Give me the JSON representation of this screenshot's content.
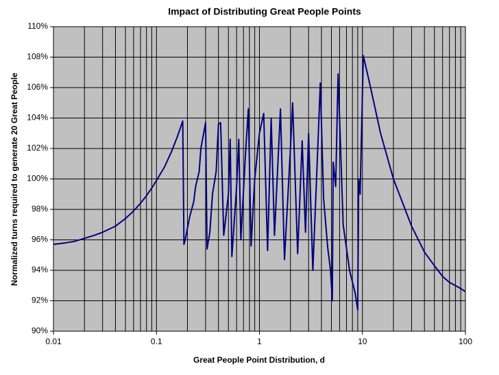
{
  "chart_data": {
    "type": "line",
    "title": "Impact of Distributing Great People Points",
    "xlabel": "Great People Point Distribution, d",
    "ylabel": "Normalized turns required to generate 20 Great People",
    "xscale": "log",
    "grid": true,
    "background": "#c0c0c0",
    "xlim": [
      0.01,
      100
    ],
    "xticks": [
      0.01,
      0.1,
      1,
      10,
      100
    ],
    "xminorticks": [
      0.02,
      0.03,
      0.04,
      0.05,
      0.06,
      0.07,
      0.08,
      0.09,
      0.2,
      0.3,
      0.4,
      0.5,
      0.6,
      0.7,
      0.8,
      0.9,
      2,
      3,
      4,
      5,
      6,
      7,
      8,
      9,
      20,
      30,
      40,
      50,
      60,
      70,
      80,
      90
    ],
    "ylim": [
      90,
      110
    ],
    "yticks": [
      {
        "value": 90,
        "label": "90%"
      },
      {
        "value": 92,
        "label": "92%"
      },
      {
        "value": 94,
        "label": "94%"
      },
      {
        "value": 96,
        "label": "96%"
      },
      {
        "value": 98,
        "label": "98%"
      },
      {
        "value": 100,
        "label": "100%"
      },
      {
        "value": 102,
        "label": "102%"
      },
      {
        "value": 104,
        "label": "104%"
      },
      {
        "value": 106,
        "label": "106%"
      },
      {
        "value": 108,
        "label": "108%"
      },
      {
        "value": 110,
        "label": "110%"
      }
    ],
    "x": [
      0.01,
      0.013,
      0.016,
      0.02,
      0.025,
      0.03,
      0.04,
      0.05,
      0.06,
      0.07,
      0.08,
      0.09,
      0.1,
      0.12,
      0.14,
      0.16,
      0.18,
      0.185,
      0.19,
      0.21,
      0.23,
      0.24,
      0.26,
      0.27,
      0.3,
      0.31,
      0.33,
      0.35,
      0.38,
      0.4,
      0.42,
      0.45,
      0.5,
      0.52,
      0.54,
      0.6,
      0.63,
      0.66,
      0.73,
      0.78,
      0.83,
      0.9,
      1.0,
      1.1,
      1.2,
      1.3,
      1.4,
      1.6,
      1.75,
      2.0,
      2.1,
      2.35,
      2.6,
      2.8,
      3.0,
      3.3,
      3.6,
      3.9,
      4.2,
      4.6,
      4.9,
      5.1,
      5.2,
      5.5,
      5.8,
      6.0,
      6.5,
      7.5,
      8.5,
      9.0,
      9.2,
      9.5,
      10.2,
      12,
      15,
      20,
      25,
      30,
      40,
      50,
      60,
      70,
      80,
      90,
      100
    ],
    "series": [
      {
        "color": "#000080",
        "values": [
          95.7,
          95.8,
          95.9,
          96.1,
          96.3,
          96.5,
          96.9,
          97.4,
          97.9,
          98.4,
          98.9,
          99.4,
          99.9,
          100.8,
          101.8,
          102.8,
          103.8,
          95.7,
          96.0,
          97.5,
          98.5,
          99.5,
          100.5,
          102.0,
          103.7,
          95.4,
          96.5,
          99.0,
          100.5,
          103.6,
          103.7,
          96.3,
          99.0,
          102.6,
          94.9,
          99.5,
          102.6,
          96.0,
          101.5,
          104.6,
          95.6,
          100.0,
          103.0,
          104.3,
          95.3,
          104.0,
          96.3,
          104.6,
          94.7,
          102.0,
          105.0,
          95.1,
          102.5,
          96.5,
          103.0,
          94.0,
          100.3,
          106.3,
          98.7,
          95.5,
          94.0,
          92.0,
          101.1,
          99.5,
          106.9,
          104.0,
          97.0,
          94.0,
          92.5,
          91.4,
          100.0,
          99.0,
          108.1,
          106.0,
          103.0,
          100.0,
          98.3,
          96.9,
          95.2,
          94.3,
          93.6,
          93.2,
          93.0,
          92.8,
          92.6
        ]
      }
    ]
  }
}
